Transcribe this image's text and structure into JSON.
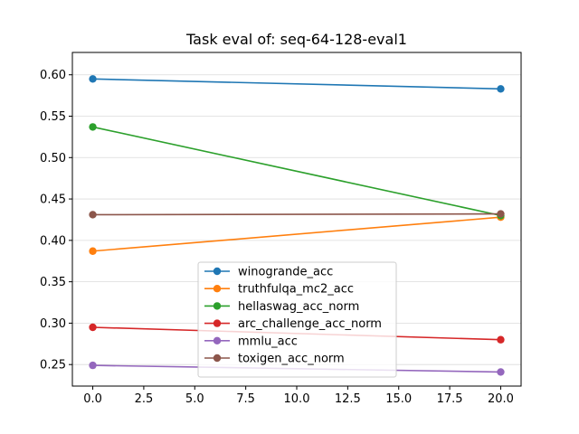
{
  "chart_data": {
    "type": "line",
    "title": "Task eval of: seq-64-128-eval1",
    "xlabel": "",
    "ylabel": "",
    "x": [
      0,
      20
    ],
    "xlim": [
      -1.0,
      21.0
    ],
    "ylim": [
      0.224,
      0.627
    ],
    "xticks": [
      0.0,
      2.5,
      5.0,
      7.5,
      10.0,
      12.5,
      15.0,
      17.5,
      20.0
    ],
    "xtick_labels": [
      "0.0",
      "2.5",
      "5.0",
      "7.5",
      "10.0",
      "12.5",
      "15.0",
      "17.5",
      "20.0"
    ],
    "yticks": [
      0.25,
      0.3,
      0.35,
      0.4,
      0.45,
      0.5,
      0.55,
      0.6
    ],
    "ytick_labels": [
      "0.25",
      "0.30",
      "0.35",
      "0.40",
      "0.45",
      "0.50",
      "0.55",
      "0.60"
    ],
    "grid": "horizontal",
    "legend_position": "lower-center",
    "series": [
      {
        "name": "winogrande_acc",
        "color": "#1f77b4",
        "values": [
          0.595,
          0.583
        ]
      },
      {
        "name": "truthfulqa_mc2_acc",
        "color": "#ff7f0e",
        "values": [
          0.387,
          0.428
        ]
      },
      {
        "name": "hellaswag_acc_norm",
        "color": "#2ca02c",
        "values": [
          0.537,
          0.43
        ]
      },
      {
        "name": "arc_challenge_acc_norm",
        "color": "#d62728",
        "values": [
          0.295,
          0.28
        ]
      },
      {
        "name": "mmlu_acc",
        "color": "#9467bd",
        "values": [
          0.249,
          0.241
        ]
      },
      {
        "name": "toxigen_acc_norm",
        "color": "#8c564b",
        "values": [
          0.431,
          0.432
        ]
      }
    ]
  }
}
